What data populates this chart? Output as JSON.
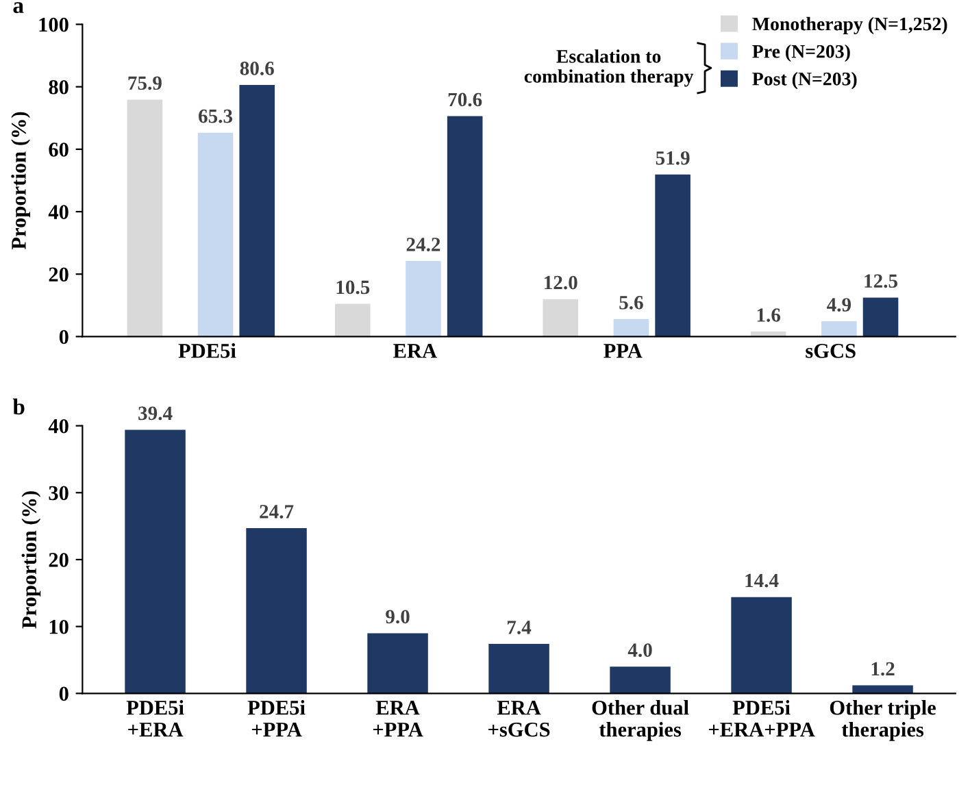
{
  "chart_data": [
    {
      "type": "bar",
      "title": "a",
      "ylabel": "Proportion (%)",
      "categories": [
        "PDE5i",
        "ERA",
        "PPA",
        "sGCS"
      ],
      "ylim": [
        0,
        100
      ],
      "yticks": [
        0,
        20,
        40,
        60,
        80,
        100
      ],
      "legend": "top right",
      "annotations": [
        "Escalation to\ncombination therapy"
      ],
      "series": [
        {
          "name": "Monotherapy (N=1,252)",
          "color": "#d9d9d9",
          "values": [
            75.9,
            10.5,
            12.0,
            1.6
          ],
          "value_labels": [
            "75.9",
            "10.5",
            "12.0",
            "1.6"
          ]
        },
        {
          "name": "Pre (N=203)",
          "color": "#c6d9f1",
          "values": [
            65.3,
            24.2,
            5.6,
            4.9
          ],
          "value_labels": [
            "65.3",
            "24.2",
            "5.6",
            "4.9"
          ]
        },
        {
          "name": "Post (N=203)",
          "color": "#1f3864",
          "values": [
            80.6,
            70.6,
            51.9,
            12.5
          ],
          "value_labels": [
            "80.6",
            "70.6",
            "51.9",
            "12.5"
          ]
        }
      ]
    },
    {
      "type": "bar",
      "title": "b",
      "ylabel": "Proportion (%)",
      "categories": [
        "PDE5i\n+ERA",
        "PDE5i\n+PPA",
        "ERA\n+PPA",
        "ERA\n+sGCS",
        "Other dual\ntherapies",
        "PDE5i\n+ERA+PPA",
        "Other triple\ntherapies"
      ],
      "ylim": [
        0,
        40
      ],
      "yticks": [
        0,
        10,
        20,
        30,
        40
      ],
      "series": [
        {
          "color": "#1f3864",
          "values": [
            39.4,
            24.7,
            9.0,
            7.4,
            4.0,
            14.4,
            1.2
          ],
          "value_labels": [
            "39.4",
            "24.7",
            "9.0",
            "7.4",
            "4.0",
            "14.4",
            "1.2"
          ]
        }
      ]
    }
  ]
}
